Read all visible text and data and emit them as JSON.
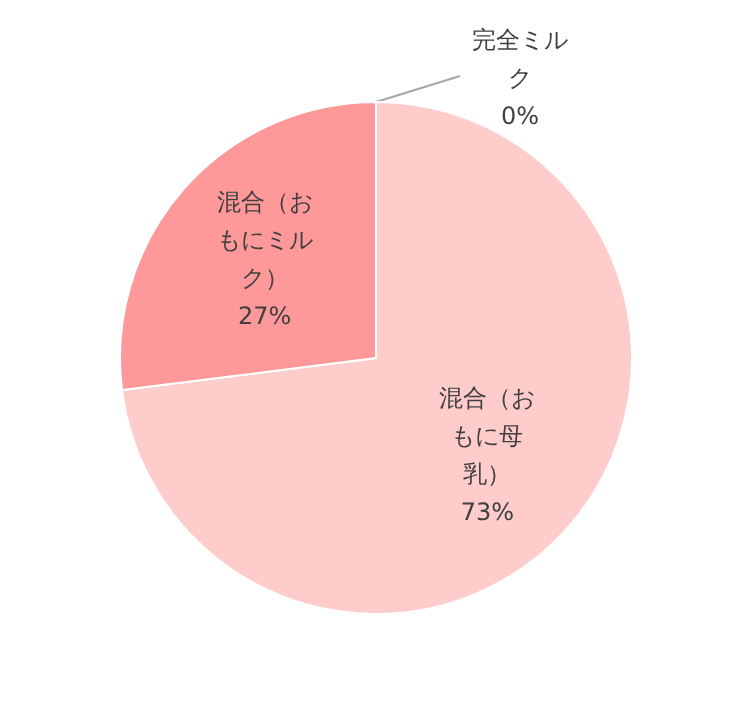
{
  "chart_data": {
    "type": "pie",
    "categories": [
      "完全ミルク",
      "混合（おもに母乳）",
      "混合（おもにミルク）"
    ],
    "values": [
      0,
      73,
      27
    ],
    "colors": [
      null,
      "#ffcccc",
      "#ff9999"
    ],
    "value_labels": [
      "0%",
      "73%",
      "27%"
    ]
  }
}
